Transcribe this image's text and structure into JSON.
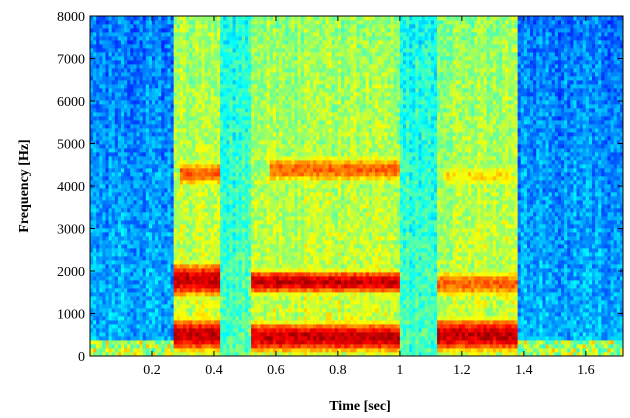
{
  "chart_data": {
    "type": "heatmap",
    "title": "",
    "xlabel": "Time [sec]",
    "ylabel": "Frequency [Hz]",
    "xlim": [
      0,
      1.72
    ],
    "ylim": [
      0,
      8000
    ],
    "x_ticks": [
      0.2,
      0.4,
      0.6,
      0.8,
      1,
      1.2,
      1.4,
      1.6
    ],
    "x_tick_labels": [
      "0.2",
      "0.4",
      "0.6",
      "0.8",
      "1",
      "1.2",
      "1.4",
      "1.6"
    ],
    "y_ticks": [
      0,
      1000,
      2000,
      3000,
      4000,
      5000,
      6000,
      7000,
      8000
    ],
    "y_tick_labels": [
      "0",
      "1000",
      "2000",
      "3000",
      "4000",
      "5000",
      "6000",
      "7000",
      "8000"
    ],
    "colormap": "jet",
    "grid": false,
    "segments": [
      {
        "start": 0.0,
        "end": 0.27,
        "level": "silence"
      },
      {
        "start": 0.27,
        "end": 0.42,
        "level": "voiced"
      },
      {
        "start": 0.42,
        "end": 0.52,
        "level": "transition"
      },
      {
        "start": 0.52,
        "end": 1.0,
        "level": "voiced"
      },
      {
        "start": 1.0,
        "end": 1.12,
        "level": "transition"
      },
      {
        "start": 1.12,
        "end": 1.38,
        "level": "voiced"
      },
      {
        "start": 1.38,
        "end": 1.72,
        "level": "silence"
      }
    ],
    "energy_bands": [
      {
        "t_start": 0.27,
        "t_end": 0.42,
        "f_low": 0,
        "f_high": 1000,
        "level": "high"
      },
      {
        "t_start": 0.27,
        "t_end": 0.42,
        "f_low": 1300,
        "f_high": 2300,
        "level": "high"
      },
      {
        "t_start": 0.29,
        "t_end": 0.42,
        "f_low": 3900,
        "f_high": 4700,
        "level": "medium"
      },
      {
        "t_start": 0.52,
        "t_end": 1.0,
        "f_low": 0,
        "f_high": 900,
        "level": "high"
      },
      {
        "t_start": 0.52,
        "t_end": 1.0,
        "f_low": 1400,
        "f_high": 2100,
        "level": "high"
      },
      {
        "t_start": 0.58,
        "t_end": 1.0,
        "f_low": 4000,
        "f_high": 4800,
        "level": "medium"
      },
      {
        "t_start": 1.12,
        "t_end": 1.38,
        "f_low": 0,
        "f_high": 1000,
        "level": "high"
      },
      {
        "t_start": 1.12,
        "t_end": 1.38,
        "f_low": 1300,
        "f_high": 2100,
        "level": "medium"
      },
      {
        "t_start": 1.14,
        "t_end": 1.36,
        "f_low": 3900,
        "f_high": 4600,
        "level": "low"
      }
    ]
  }
}
